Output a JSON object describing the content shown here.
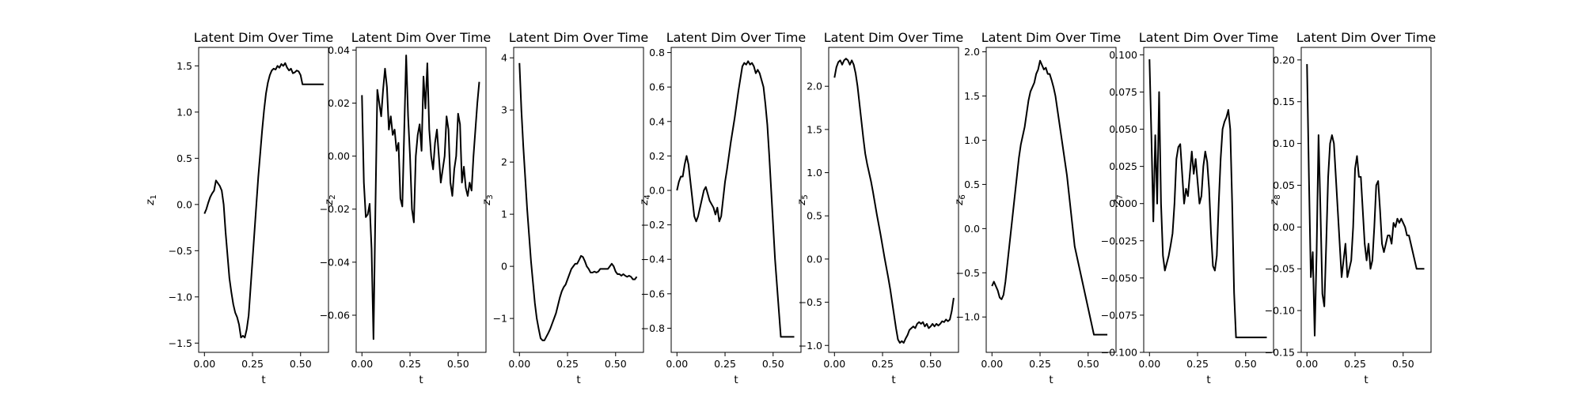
{
  "chart_data": [
    {
      "type": "line",
      "title": "Latent Dim Over Time",
      "xlabel": "t",
      "ylabel_main": "z",
      "ylabel_sub": "1",
      "xlim": [
        -0.03,
        0.645
      ],
      "ylim": [
        -1.6,
        1.7
      ],
      "xticks": [
        0,
        0.25,
        0.5
      ],
      "xtick_labels": [
        "0.00",
        "0.25",
        "0.50"
      ],
      "yticks": [
        -1.5,
        -1.0,
        -0.5,
        0.0,
        0.5,
        1.0,
        1.5
      ],
      "ytick_labels": [
        "−1.5",
        "−1.0",
        "−0.5",
        "0.0",
        "0.5",
        "1.0",
        "1.5"
      ],
      "x": [
        0,
        0.01,
        0.02,
        0.03,
        0.04,
        0.05,
        0.06,
        0.07,
        0.08,
        0.09,
        0.1,
        0.11,
        0.12,
        0.13,
        0.14,
        0.15,
        0.16,
        0.17,
        0.18,
        0.19,
        0.2,
        0.21,
        0.22,
        0.23,
        0.24,
        0.25,
        0.26,
        0.27,
        0.28,
        0.29,
        0.3,
        0.31,
        0.32,
        0.33,
        0.34,
        0.35,
        0.36,
        0.37,
        0.38,
        0.39,
        0.4,
        0.41,
        0.42,
        0.43,
        0.44,
        0.45,
        0.46,
        0.47,
        0.48,
        0.49,
        0.5,
        0.51,
        0.52,
        0.53,
        0.54,
        0.55,
        0.56,
        0.57,
        0.58,
        0.59,
        0.6,
        0.61,
        0.62
      ],
      "values": [
        -0.1,
        -0.05,
        0.02,
        0.08,
        0.12,
        0.15,
        0.26,
        0.23,
        0.2,
        0.15,
        0.0,
        -0.3,
        -0.55,
        -0.8,
        -0.95,
        -1.08,
        -1.17,
        -1.22,
        -1.3,
        -1.44,
        -1.42,
        -1.44,
        -1.35,
        -1.2,
        -0.9,
        -0.6,
        -0.3,
        0.0,
        0.3,
        0.55,
        0.8,
        1.02,
        1.2,
        1.32,
        1.4,
        1.45,
        1.47,
        1.46,
        1.5,
        1.48,
        1.52,
        1.5,
        1.53,
        1.48,
        1.45,
        1.47,
        1.42,
        1.43,
        1.45,
        1.44,
        1.4,
        1.3,
        1.3,
        1.3,
        1.3,
        1.3,
        1.3,
        1.3,
        1.3,
        1.3,
        1.3,
        1.3,
        1.3
      ]
    },
    {
      "type": "line",
      "title": "Latent Dim Over Time",
      "xlabel": "t",
      "ylabel_main": "z",
      "ylabel_sub": "2",
      "xlim": [
        -0.03,
        0.645
      ],
      "ylim": [
        -0.074,
        0.041
      ],
      "xticks": [
        0,
        0.25,
        0.5
      ],
      "xtick_labels": [
        "0.00",
        "0.25",
        "0.50"
      ],
      "yticks": [
        -0.06,
        -0.04,
        -0.02,
        0.0,
        0.02,
        0.04
      ],
      "ytick_labels": [
        "−0.06",
        "−0.04",
        "−0.02",
        "0.00",
        "0.02",
        "0.04"
      ],
      "x": [
        0,
        0.01,
        0.02,
        0.03,
        0.04,
        0.05,
        0.06,
        0.07,
        0.08,
        0.09,
        0.1,
        0.11,
        0.12,
        0.13,
        0.14,
        0.15,
        0.16,
        0.17,
        0.18,
        0.19,
        0.2,
        0.21,
        0.22,
        0.23,
        0.24,
        0.25,
        0.26,
        0.27,
        0.28,
        0.29,
        0.3,
        0.31,
        0.32,
        0.33,
        0.34,
        0.35,
        0.36,
        0.37,
        0.38,
        0.39,
        0.4,
        0.41,
        0.42,
        0.43,
        0.44,
        0.45,
        0.46,
        0.47,
        0.48,
        0.49,
        0.5,
        0.51,
        0.52,
        0.53,
        0.54,
        0.55,
        0.56,
        0.57,
        0.58,
        0.59,
        0.6,
        0.61
      ],
      "values": [
        0.023,
        -0.01,
        -0.023,
        -0.022,
        -0.018,
        -0.035,
        -0.069,
        -0.02,
        0.025,
        0.02,
        0.015,
        0.025,
        0.033,
        0.026,
        0.01,
        0.015,
        0.008,
        0.01,
        0.002,
        0.005,
        -0.016,
        -0.019,
        0.01,
        0.038,
        0.015,
        0.0,
        -0.02,
        -0.025,
        0.0,
        0.008,
        0.012,
        0.002,
        0.03,
        0.018,
        0.035,
        0.01,
        0.0,
        -0.005,
        0.005,
        0.01,
        0.0,
        -0.01,
        -0.005,
        0.0,
        0.015,
        0.01,
        -0.01,
        -0.015,
        -0.005,
        0.0,
        0.016,
        0.012,
        -0.01,
        -0.004,
        -0.012,
        -0.015,
        -0.01,
        -0.013,
        0.0,
        0.01,
        0.02,
        0.028
      ]
    },
    {
      "type": "line",
      "title": "Latent Dim Over Time",
      "xlabel": "t",
      "ylabel_main": "z",
      "ylabel_sub": "3",
      "xlim": [
        -0.03,
        0.645
      ],
      "ylim": [
        -1.65,
        4.2
      ],
      "xticks": [
        0,
        0.25,
        0.5
      ],
      "xtick_labels": [
        "0.00",
        "0.25",
        "0.50"
      ],
      "yticks": [
        -1,
        0,
        1,
        2,
        3,
        4
      ],
      "ytick_labels": [
        "−1",
        "0",
        "1",
        "2",
        "3",
        "4"
      ],
      "x": [
        0,
        0.01,
        0.02,
        0.03,
        0.04,
        0.05,
        0.06,
        0.07,
        0.08,
        0.09,
        0.1,
        0.11,
        0.12,
        0.13,
        0.14,
        0.15,
        0.16,
        0.17,
        0.18,
        0.19,
        0.2,
        0.21,
        0.22,
        0.23,
        0.24,
        0.25,
        0.26,
        0.27,
        0.28,
        0.29,
        0.3,
        0.31,
        0.32,
        0.33,
        0.34,
        0.35,
        0.36,
        0.37,
        0.38,
        0.39,
        0.4,
        0.41,
        0.42,
        0.43,
        0.44,
        0.45,
        0.46,
        0.47,
        0.48,
        0.49,
        0.5,
        0.51,
        0.52,
        0.53,
        0.54,
        0.55,
        0.56,
        0.57,
        0.58,
        0.59,
        0.6,
        0.61
      ],
      "values": [
        3.9,
        3.0,
        2.3,
        1.7,
        1.1,
        0.6,
        0.1,
        -0.3,
        -0.7,
        -1.0,
        -1.2,
        -1.38,
        -1.42,
        -1.42,
        -1.35,
        -1.28,
        -1.2,
        -1.1,
        -1.0,
        -0.9,
        -0.75,
        -0.6,
        -0.48,
        -0.4,
        -0.35,
        -0.25,
        -0.15,
        -0.05,
        0.0,
        0.05,
        0.05,
        0.12,
        0.2,
        0.18,
        0.1,
        0.0,
        -0.05,
        -0.12,
        -0.12,
        -0.1,
        -0.12,
        -0.1,
        -0.05,
        -0.05,
        -0.05,
        -0.05,
        -0.05,
        0.0,
        0.05,
        0.0,
        -0.1,
        -0.15,
        -0.15,
        -0.18,
        -0.15,
        -0.18,
        -0.2,
        -0.18,
        -0.2,
        -0.25,
        -0.25,
        -0.2
      ]
    },
    {
      "type": "line",
      "title": "Latent Dim Over Time",
      "xlabel": "t",
      "ylabel_main": "z",
      "ylabel_sub": "4",
      "xlim": [
        -0.03,
        0.645
      ],
      "ylim": [
        -0.94,
        0.83
      ],
      "xticks": [
        0,
        0.25,
        0.5
      ],
      "xtick_labels": [
        "0.00",
        "0.25",
        "0.50"
      ],
      "yticks": [
        -0.8,
        -0.6,
        -0.4,
        -0.2,
        0.0,
        0.2,
        0.4,
        0.6,
        0.8
      ],
      "ytick_labels": [
        "−0.8",
        "−0.6",
        "−0.4",
        "−0.2",
        "0.0",
        "0.2",
        "0.4",
        "0.6",
        "0.8"
      ],
      "x": [
        0,
        0.01,
        0.02,
        0.03,
        0.04,
        0.05,
        0.06,
        0.07,
        0.08,
        0.09,
        0.1,
        0.11,
        0.12,
        0.13,
        0.14,
        0.15,
        0.16,
        0.17,
        0.18,
        0.19,
        0.2,
        0.21,
        0.22,
        0.23,
        0.24,
        0.25,
        0.26,
        0.27,
        0.28,
        0.29,
        0.3,
        0.31,
        0.32,
        0.33,
        0.34,
        0.35,
        0.36,
        0.37,
        0.38,
        0.39,
        0.4,
        0.41,
        0.42,
        0.43,
        0.44,
        0.45,
        0.46,
        0.47,
        0.48,
        0.49,
        0.5,
        0.51,
        0.52,
        0.53,
        0.54,
        0.55,
        0.56,
        0.57,
        0.58,
        0.59,
        0.6,
        0.61
      ],
      "values": [
        0.0,
        0.05,
        0.08,
        0.08,
        0.15,
        0.2,
        0.15,
        0.05,
        -0.05,
        -0.15,
        -0.18,
        -0.15,
        -0.1,
        -0.05,
        0.0,
        0.02,
        -0.02,
        -0.06,
        -0.08,
        -0.1,
        -0.14,
        -0.1,
        -0.18,
        -0.15,
        -0.05,
        0.05,
        0.12,
        0.2,
        0.28,
        0.35,
        0.42,
        0.5,
        0.58,
        0.65,
        0.72,
        0.74,
        0.73,
        0.75,
        0.73,
        0.74,
        0.72,
        0.68,
        0.7,
        0.68,
        0.64,
        0.6,
        0.5,
        0.38,
        0.2,
        0.0,
        -0.2,
        -0.4,
        -0.55,
        -0.7,
        -0.85,
        -0.85,
        -0.85,
        -0.85,
        -0.85,
        -0.85,
        -0.85,
        -0.85
      ]
    },
    {
      "type": "line",
      "title": "Latent Dim Over Time",
      "xlabel": "t",
      "ylabel_main": "z",
      "ylabel_sub": "5",
      "xlim": [
        -0.03,
        0.645
      ],
      "ylim": [
        -1.08,
        2.45
      ],
      "xticks": [
        0,
        0.25,
        0.5
      ],
      "xtick_labels": [
        "0.00",
        "0.25",
        "0.50"
      ],
      "yticks": [
        -1.0,
        -0.5,
        0.0,
        0.5,
        1.0,
        1.5,
        2.0
      ],
      "ytick_labels": [
        "−1.0",
        "−0.5",
        "0.0",
        "0.5",
        "1.0",
        "1.5",
        "2.0"
      ],
      "x": [
        0,
        0.01,
        0.02,
        0.03,
        0.04,
        0.05,
        0.06,
        0.07,
        0.08,
        0.09,
        0.1,
        0.11,
        0.12,
        0.13,
        0.14,
        0.15,
        0.16,
        0.17,
        0.18,
        0.19,
        0.2,
        0.21,
        0.22,
        0.23,
        0.24,
        0.25,
        0.26,
        0.27,
        0.28,
        0.29,
        0.3,
        0.31,
        0.32,
        0.33,
        0.34,
        0.35,
        0.36,
        0.37,
        0.38,
        0.39,
        0.4,
        0.41,
        0.42,
        0.43,
        0.44,
        0.45,
        0.46,
        0.47,
        0.48,
        0.49,
        0.5,
        0.51,
        0.52,
        0.53,
        0.54,
        0.55,
        0.56,
        0.57,
        0.58,
        0.59,
        0.6,
        0.61,
        0.62
      ],
      "values": [
        2.1,
        2.22,
        2.28,
        2.3,
        2.25,
        2.3,
        2.32,
        2.3,
        2.25,
        2.3,
        2.25,
        2.15,
        2.0,
        1.8,
        1.6,
        1.4,
        1.22,
        1.1,
        1.0,
        0.9,
        0.78,
        0.65,
        0.52,
        0.4,
        0.28,
        0.15,
        0.02,
        -0.1,
        -0.22,
        -0.35,
        -0.5,
        -0.65,
        -0.8,
        -0.93,
        -0.97,
        -0.95,
        -0.97,
        -0.92,
        -0.88,
        -0.82,
        -0.8,
        -0.78,
        -0.8,
        -0.75,
        -0.73,
        -0.75,
        -0.73,
        -0.78,
        -0.75,
        -0.8,
        -0.78,
        -0.75,
        -0.78,
        -0.75,
        -0.77,
        -0.75,
        -0.72,
        -0.73,
        -0.7,
        -0.72,
        -0.7,
        -0.6,
        -0.45
      ]
    },
    {
      "type": "line",
      "title": "Latent Dim Over Time",
      "xlabel": "t",
      "ylabel_main": "z",
      "ylabel_sub": "6",
      "xlim": [
        -0.03,
        0.645
      ],
      "ylim": [
        -1.4,
        2.05
      ],
      "xticks": [
        0,
        0.25,
        0.5
      ],
      "xtick_labels": [
        "0.00",
        "0.25",
        "0.50"
      ],
      "yticks": [
        -1.0,
        -0.5,
        0.0,
        0.5,
        1.0,
        1.5,
        2.0
      ],
      "ytick_labels": [
        "−1.0",
        "−0.5",
        "0.0",
        "0.5",
        "1.0",
        "1.5",
        "2.0"
      ],
      "x": [
        0,
        0.01,
        0.02,
        0.03,
        0.04,
        0.05,
        0.06,
        0.07,
        0.08,
        0.09,
        0.1,
        0.11,
        0.12,
        0.13,
        0.14,
        0.15,
        0.16,
        0.17,
        0.18,
        0.19,
        0.2,
        0.21,
        0.22,
        0.23,
        0.24,
        0.25,
        0.26,
        0.27,
        0.28,
        0.29,
        0.3,
        0.31,
        0.32,
        0.33,
        0.34,
        0.35,
        0.36,
        0.37,
        0.38,
        0.39,
        0.4,
        0.41,
        0.42,
        0.43,
        0.44,
        0.45,
        0.46,
        0.47,
        0.48,
        0.49,
        0.5,
        0.51,
        0.52,
        0.53,
        0.54,
        0.55,
        0.56,
        0.57,
        0.58,
        0.59,
        0.6
      ],
      "values": [
        -0.65,
        -0.6,
        -0.65,
        -0.7,
        -0.78,
        -0.8,
        -0.75,
        -0.6,
        -0.4,
        -0.2,
        0.0,
        0.2,
        0.4,
        0.6,
        0.8,
        0.95,
        1.05,
        1.15,
        1.3,
        1.45,
        1.55,
        1.6,
        1.65,
        1.75,
        1.8,
        1.9,
        1.85,
        1.8,
        1.82,
        1.75,
        1.75,
        1.68,
        1.6,
        1.5,
        1.35,
        1.2,
        1.05,
        0.9,
        0.75,
        0.6,
        0.4,
        0.2,
        0.0,
        -0.2,
        -0.3,
        -0.4,
        -0.5,
        -0.6,
        -0.7,
        -0.8,
        -0.9,
        -1.0,
        -1.1,
        -1.2,
        -1.2,
        -1.2,
        -1.2,
        -1.2,
        -1.2,
        -1.2,
        -1.2
      ]
    },
    {
      "type": "line",
      "title": "Latent Dim Over Time",
      "xlabel": "t",
      "ylabel_main": "z",
      "ylabel_sub": "7",
      "xlim": [
        -0.03,
        0.645
      ],
      "ylim": [
        -0.1,
        0.105
      ],
      "xticks": [
        0,
        0.25,
        0.5
      ],
      "xtick_labels": [
        "0.00",
        "0.25",
        "0.50"
      ],
      "yticks": [
        -0.1,
        -0.075,
        -0.05,
        -0.025,
        0.0,
        0.025,
        0.05,
        0.075,
        0.1
      ],
      "ytick_labels": [
        "−0.100",
        "−0.075",
        "−0.050",
        "−0.025",
        "0.000",
        "0.025",
        "0.050",
        "0.075",
        "0.100"
      ],
      "x": [
        0,
        0.01,
        0.02,
        0.03,
        0.04,
        0.05,
        0.06,
        0.07,
        0.08,
        0.09,
        0.1,
        0.11,
        0.12,
        0.13,
        0.14,
        0.15,
        0.16,
        0.17,
        0.18,
        0.19,
        0.2,
        0.21,
        0.22,
        0.23,
        0.24,
        0.25,
        0.26,
        0.27,
        0.28,
        0.29,
        0.3,
        0.31,
        0.32,
        0.33,
        0.34,
        0.35,
        0.36,
        0.37,
        0.38,
        0.39,
        0.4,
        0.41,
        0.42,
        0.43,
        0.44,
        0.45,
        0.46,
        0.47,
        0.48,
        0.49,
        0.5,
        0.51,
        0.52,
        0.53,
        0.54,
        0.55,
        0.56,
        0.57,
        0.58,
        0.59,
        0.6,
        0.61
      ],
      "values": [
        0.097,
        0.045,
        -0.012,
        0.046,
        0.0,
        0.075,
        0.0,
        -0.035,
        -0.045,
        -0.04,
        -0.035,
        -0.028,
        -0.02,
        0.0,
        0.03,
        0.038,
        0.04,
        0.02,
        0.0,
        0.01,
        0.005,
        0.02,
        0.035,
        0.02,
        0.03,
        0.015,
        0.0,
        0.005,
        0.025,
        0.035,
        0.028,
        0.01,
        -0.02,
        -0.042,
        -0.045,
        -0.035,
        0.0,
        0.03,
        0.05,
        0.055,
        0.058,
        0.063,
        0.05,
        0.0,
        -0.06,
        -0.09,
        -0.09,
        -0.09,
        -0.09,
        -0.09,
        -0.09,
        -0.09,
        -0.09,
        -0.09,
        -0.09,
        -0.09,
        -0.09,
        -0.09,
        -0.09,
        -0.09,
        -0.09,
        -0.09
      ]
    },
    {
      "type": "line",
      "title": "Latent Dim Over Time",
      "xlabel": "t",
      "ylabel_main": "z",
      "ylabel_sub": "8",
      "xlim": [
        -0.03,
        0.645
      ],
      "ylim": [
        -0.15,
        0.215
      ],
      "xticks": [
        0,
        0.25,
        0.5
      ],
      "xtick_labels": [
        "0.00",
        "0.25",
        "0.50"
      ],
      "yticks": [
        -0.15,
        -0.1,
        -0.05,
        0.0,
        0.05,
        0.1,
        0.15,
        0.2
      ],
      "ytick_labels": [
        "−0.15",
        "−0.10",
        "−0.05",
        "0.00",
        "0.05",
        "0.10",
        "0.15",
        "0.20"
      ],
      "x": [
        0,
        0.01,
        0.02,
        0.03,
        0.04,
        0.05,
        0.06,
        0.07,
        0.08,
        0.09,
        0.1,
        0.11,
        0.12,
        0.13,
        0.14,
        0.15,
        0.16,
        0.17,
        0.18,
        0.19,
        0.2,
        0.21,
        0.22,
        0.23,
        0.24,
        0.25,
        0.26,
        0.27,
        0.28,
        0.29,
        0.3,
        0.31,
        0.32,
        0.33,
        0.34,
        0.35,
        0.36,
        0.37,
        0.38,
        0.39,
        0.4,
        0.41,
        0.42,
        0.43,
        0.44,
        0.45,
        0.46,
        0.47,
        0.48,
        0.49,
        0.5,
        0.51,
        0.52,
        0.53,
        0.54,
        0.55,
        0.56,
        0.57,
        0.58,
        0.59,
        0.6,
        0.61
      ],
      "values": [
        0.195,
        0.06,
        -0.06,
        -0.03,
        -0.13,
        -0.03,
        0.11,
        0.02,
        -0.08,
        -0.095,
        -0.02,
        0.06,
        0.1,
        0.11,
        0.1,
        0.06,
        0.02,
        -0.02,
        -0.06,
        -0.04,
        -0.02,
        -0.06,
        -0.05,
        -0.04,
        0.0,
        0.07,
        0.085,
        0.06,
        0.06,
        0.02,
        -0.02,
        -0.04,
        -0.02,
        -0.05,
        -0.04,
        0.0,
        0.05,
        0.055,
        0.02,
        -0.02,
        -0.03,
        -0.02,
        -0.01,
        -0.01,
        -0.02,
        0.005,
        0.0,
        0.01,
        0.005,
        0.01,
        0.005,
        0.0,
        -0.01,
        -0.01,
        -0.02,
        -0.03,
        -0.04,
        -0.05,
        -0.05,
        -0.05,
        -0.05,
        -0.05
      ]
    }
  ]
}
